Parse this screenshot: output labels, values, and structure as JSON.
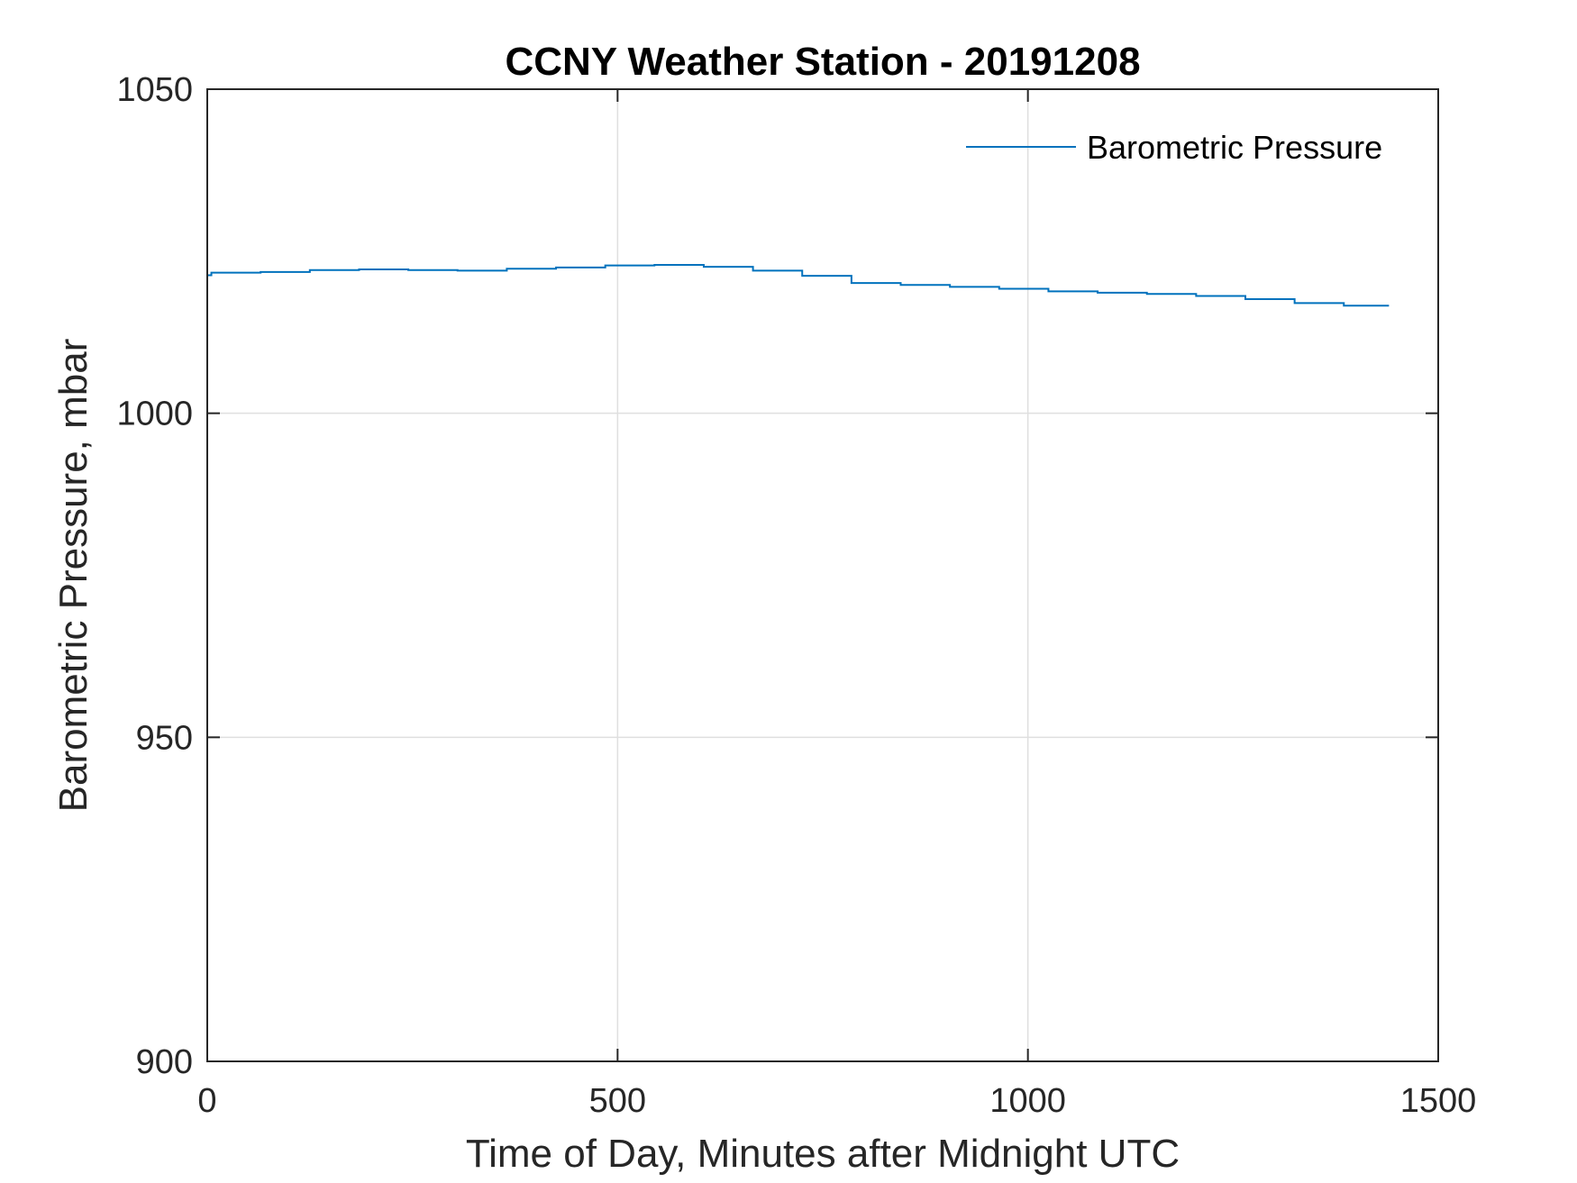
{
  "chart_data": {
    "type": "line",
    "title": "CCNY Weather Station - 20191208",
    "xlabel": "Time of Day, Minutes after Midnight UTC",
    "ylabel": "Barometric Pressure, mbar",
    "xlim": [
      0,
      1500
    ],
    "ylim": [
      900,
      1050
    ],
    "xticks": [
      0,
      500,
      1000,
      1500
    ],
    "xtick_labels": [
      "0",
      "500",
      "1000",
      "1500"
    ],
    "yticks": [
      900,
      950,
      1000,
      1050
    ],
    "ytick_labels": [
      "900",
      "950",
      "1000",
      "1050"
    ],
    "grid": true,
    "legend": {
      "position": "top-right",
      "entries": [
        "Barometric Pressure"
      ]
    },
    "series": [
      {
        "name": "Barometric Pressure",
        "color": "#0072BD",
        "x": [
          0,
          5,
          65,
          125,
          185,
          245,
          305,
          365,
          425,
          485,
          545,
          605,
          665,
          725,
          785,
          845,
          905,
          965,
          1025,
          1085,
          1145,
          1205,
          1265,
          1325,
          1385,
          1440
        ],
        "y": [
          1021.3,
          1021.7,
          1021.8,
          1022.1,
          1022.2,
          1022.1,
          1022.0,
          1022.3,
          1022.5,
          1022.8,
          1022.9,
          1022.6,
          1022.0,
          1021.2,
          1020.1,
          1019.8,
          1019.5,
          1019.2,
          1018.8,
          1018.6,
          1018.4,
          1018.1,
          1017.6,
          1017.0,
          1016.6,
          1016.6
        ]
      }
    ]
  }
}
